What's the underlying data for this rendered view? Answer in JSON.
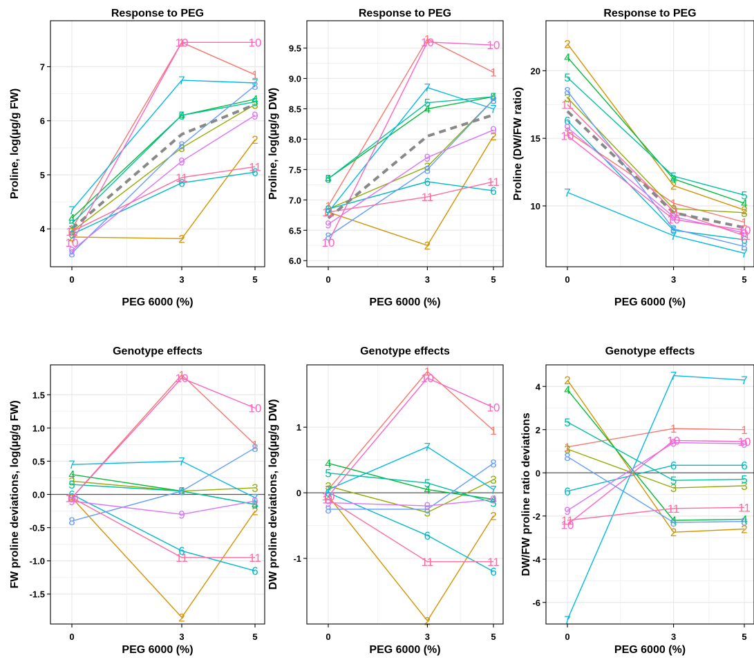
{
  "colors": {
    "1": "#F8766D",
    "2": "#D39200",
    "3": "#93AA00",
    "4": "#00BA38",
    "5": "#00C19F",
    "6": "#00B9C7",
    "7": "#00B9E3",
    "8": "#619CFF",
    "9": "#DB72FB",
    "10": "#FF61C3",
    "11": "#FF6AA0",
    "mean": "#888888",
    "zero": "#555555",
    "grid": "#e8e8e8"
  },
  "chart_data": [
    {
      "type": "line",
      "title": "Response to PEG",
      "xlabel": "PEG 6000 (%)",
      "ylabel": "Proline, log(µg/g FW)",
      "x": [
        0,
        3,
        5
      ],
      "ylim": [
        3.3,
        7.85
      ],
      "yticks": [
        4,
        5,
        6,
        7
      ],
      "grid": true,
      "mean": [
        4.0,
        5.75,
        6.3
      ],
      "series": [
        {
          "name": "1",
          "values": [
            4.0,
            7.45,
            6.85
          ]
        },
        {
          "name": "2",
          "values": [
            3.85,
            3.82,
            5.65
          ]
        },
        {
          "name": "3",
          "values": [
            3.95,
            5.5,
            6.3
          ]
        },
        {
          "name": "4",
          "values": [
            4.2,
            6.1,
            6.4
          ]
        },
        {
          "name": "5",
          "values": [
            4.1,
            6.1,
            6.35
          ]
        },
        {
          "name": "6",
          "values": [
            3.9,
            4.85,
            5.05
          ]
        },
        {
          "name": "7",
          "values": [
            4.35,
            6.75,
            6.7
          ]
        },
        {
          "name": "8",
          "values": [
            3.55,
            5.55,
            6.65
          ]
        },
        {
          "name": "9",
          "values": [
            3.6,
            5.25,
            6.1
          ]
        },
        {
          "name": "10",
          "values": [
            3.75,
            7.45,
            7.45
          ]
        },
        {
          "name": "11",
          "values": [
            3.95,
            4.95,
            5.15
          ]
        }
      ]
    },
    {
      "type": "line",
      "title": "Response to PEG",
      "xlabel": "PEG 6000 (%)",
      "ylabel": "Proline, log(µg/g DW)",
      "x": [
        0,
        3,
        5
      ],
      "ylim": [
        5.9,
        9.95
      ],
      "yticks": [
        6.0,
        6.5,
        7.0,
        7.5,
        8.0,
        8.5,
        9.0,
        9.5
      ],
      "ytick_labels": [
        "6.0",
        "6.5",
        "7.0",
        "7.5",
        "8.0",
        "8.5",
        "9.0",
        "9.5"
      ],
      "grid": true,
      "mean": [
        6.7,
        8.05,
        8.4
      ],
      "series": [
        {
          "name": "1",
          "values": [
            6.9,
            9.65,
            9.1
          ]
        },
        {
          "name": "2",
          "values": [
            6.8,
            6.25,
            8.05
          ]
        },
        {
          "name": "3",
          "values": [
            6.85,
            7.55,
            8.65
          ]
        },
        {
          "name": "4",
          "values": [
            7.35,
            8.5,
            8.7
          ]
        },
        {
          "name": "5",
          "values": [
            7.35,
            8.6,
            8.7
          ]
        },
        {
          "name": "6",
          "values": [
            6.85,
            7.3,
            7.15
          ]
        },
        {
          "name": "7",
          "values": [
            6.8,
            8.85,
            8.5
          ]
        },
        {
          "name": "8",
          "values": [
            6.4,
            7.5,
            8.65
          ]
        },
        {
          "name": "9",
          "values": [
            6.6,
            7.7,
            8.15
          ]
        },
        {
          "name": "10",
          "values": [
            6.3,
            9.6,
            9.55
          ]
        },
        {
          "name": "11",
          "values": [
            6.8,
            7.05,
            7.3
          ]
        }
      ]
    },
    {
      "type": "line",
      "title": "Response to PEG",
      "xlabel": "PEG 6000 (%)",
      "ylabel": "Proline (DW/FW ratio)",
      "x": [
        0,
        3,
        5
      ],
      "ylim": [
        5.5,
        23.7
      ],
      "yticks": [
        10,
        15,
        20
      ],
      "grid": true,
      "mean": [
        17.0,
        9.5,
        8.4
      ],
      "series": [
        {
          "name": "1",
          "values": [
            15.5,
            10.2,
            8.8
          ]
        },
        {
          "name": "2",
          "values": [
            22.0,
            11.5,
            9.7
          ]
        },
        {
          "name": "3",
          "values": [
            18.0,
            9.8,
            9.5
          ]
        },
        {
          "name": "4",
          "values": [
            21.0,
            12.0,
            10.2
          ]
        },
        {
          "name": "5",
          "values": [
            19.5,
            12.2,
            10.8
          ]
        },
        {
          "name": "6",
          "values": [
            16.3,
            8.2,
            7.5
          ]
        },
        {
          "name": "7",
          "values": [
            11.0,
            7.8,
            6.5
          ]
        },
        {
          "name": "8",
          "values": [
            18.5,
            8.3,
            7.0
          ]
        },
        {
          "name": "9",
          "values": [
            15.8,
            9.2,
            8.0
          ]
        },
        {
          "name": "10",
          "values": [
            15.2,
            9.0,
            8.2
          ]
        },
        {
          "name": "11",
          "values": [
            17.5,
            9.6,
            7.8
          ]
        }
      ]
    },
    {
      "type": "line",
      "title": "Genotype effects",
      "xlabel": "PEG 6000 (%)",
      "ylabel": "FW proline deviations, log(µg/g FW)",
      "x": [
        0,
        3,
        5
      ],
      "ylim": [
        -1.95,
        1.95
      ],
      "yticks": [
        -1.5,
        -1.0,
        -0.5,
        0.0,
        0.5,
        1.0,
        1.5
      ],
      "ytick_labels": [
        "-1.5",
        "-1.0",
        "-0.5",
        "0.0",
        "0.5",
        "1.0",
        "1.5"
      ],
      "grid": true,
      "zero_line": 0,
      "series": [
        {
          "name": "1",
          "values": [
            -0.05,
            1.8,
            0.75
          ]
        },
        {
          "name": "2",
          "values": [
            -0.05,
            -1.85,
            -0.25
          ]
        },
        {
          "name": "3",
          "values": [
            0.2,
            0.05,
            0.1
          ]
        },
        {
          "name": "4",
          "values": [
            0.3,
            0.05,
            -0.15
          ]
        },
        {
          "name": "5",
          "values": [
            0.15,
            0.05,
            -0.15
          ]
        },
        {
          "name": "6",
          "values": [
            0.0,
            -0.85,
            -1.15
          ]
        },
        {
          "name": "7",
          "values": [
            0.45,
            0.5,
            -0.05
          ]
        },
        {
          "name": "8",
          "values": [
            -0.4,
            0.05,
            0.7
          ]
        },
        {
          "name": "9",
          "values": [
            -0.1,
            -0.3,
            -0.1
          ]
        },
        {
          "name": "10",
          "values": [
            -0.05,
            1.75,
            1.3
          ]
        },
        {
          "name": "11",
          "values": [
            -0.05,
            -0.95,
            -0.95
          ]
        }
      ]
    },
    {
      "type": "line",
      "title": "Genotype effects",
      "xlabel": "PEG 6000 (%)",
      "ylabel": "DW proline deviations, log(µg/g DW)",
      "x": [
        0,
        3,
        5
      ],
      "ylim": [
        -2.0,
        1.95
      ],
      "yticks": [
        -1,
        0,
        1
      ],
      "grid": true,
      "zero_line": 0,
      "series": [
        {
          "name": "1",
          "values": [
            0.05,
            1.85,
            0.95
          ]
        },
        {
          "name": "2",
          "values": [
            -0.05,
            -1.95,
            -0.35
          ]
        },
        {
          "name": "3",
          "values": [
            0.1,
            -0.3,
            0.2
          ]
        },
        {
          "name": "4",
          "values": [
            0.45,
            0.05,
            -0.1
          ]
        },
        {
          "name": "5",
          "values": [
            0.3,
            0.15,
            -0.15
          ]
        },
        {
          "name": "6",
          "values": [
            0.0,
            -0.65,
            -1.2
          ]
        },
        {
          "name": "7",
          "values": [
            0.05,
            0.7,
            0.05
          ]
        },
        {
          "name": "8",
          "values": [
            -0.25,
            -0.25,
            0.45
          ]
        },
        {
          "name": "9",
          "values": [
            -0.15,
            -0.2,
            -0.1
          ]
        },
        {
          "name": "10",
          "values": [
            -0.05,
            1.75,
            1.3
          ]
        },
        {
          "name": "11",
          "values": [
            -0.1,
            -1.05,
            -1.05
          ]
        }
      ]
    },
    {
      "type": "line",
      "title": "Genotype effects",
      "xlabel": "PEG 6000 (%)",
      "ylabel": "DW/FW proline ratio deviations",
      "x": [
        0,
        3,
        5
      ],
      "ylim": [
        -7.0,
        5.0
      ],
      "yticks": [
        -6,
        -4,
        -2,
        0,
        2,
        4
      ],
      "grid": true,
      "zero_line": 0,
      "series": [
        {
          "name": "1",
          "values": [
            1.2,
            2.05,
            2.0
          ]
        },
        {
          "name": "2",
          "values": [
            4.3,
            -2.75,
            -2.6
          ]
        },
        {
          "name": "3",
          "values": [
            1.1,
            -0.7,
            -0.6
          ]
        },
        {
          "name": "4",
          "values": [
            3.85,
            -2.2,
            -2.15
          ]
        },
        {
          "name": "5",
          "values": [
            2.35,
            -0.35,
            -0.3
          ]
        },
        {
          "name": "6",
          "values": [
            -0.85,
            0.35,
            0.35
          ]
        },
        {
          "name": "7",
          "values": [
            -6.8,
            4.5,
            4.3
          ]
        },
        {
          "name": "8",
          "values": [
            0.75,
            -2.3,
            -2.25
          ]
        },
        {
          "name": "9",
          "values": [
            -1.75,
            1.4,
            1.35
          ]
        },
        {
          "name": "10",
          "values": [
            -2.4,
            1.5,
            1.45
          ]
        },
        {
          "name": "11",
          "values": [
            -2.2,
            -1.65,
            -1.6
          ]
        }
      ]
    }
  ]
}
